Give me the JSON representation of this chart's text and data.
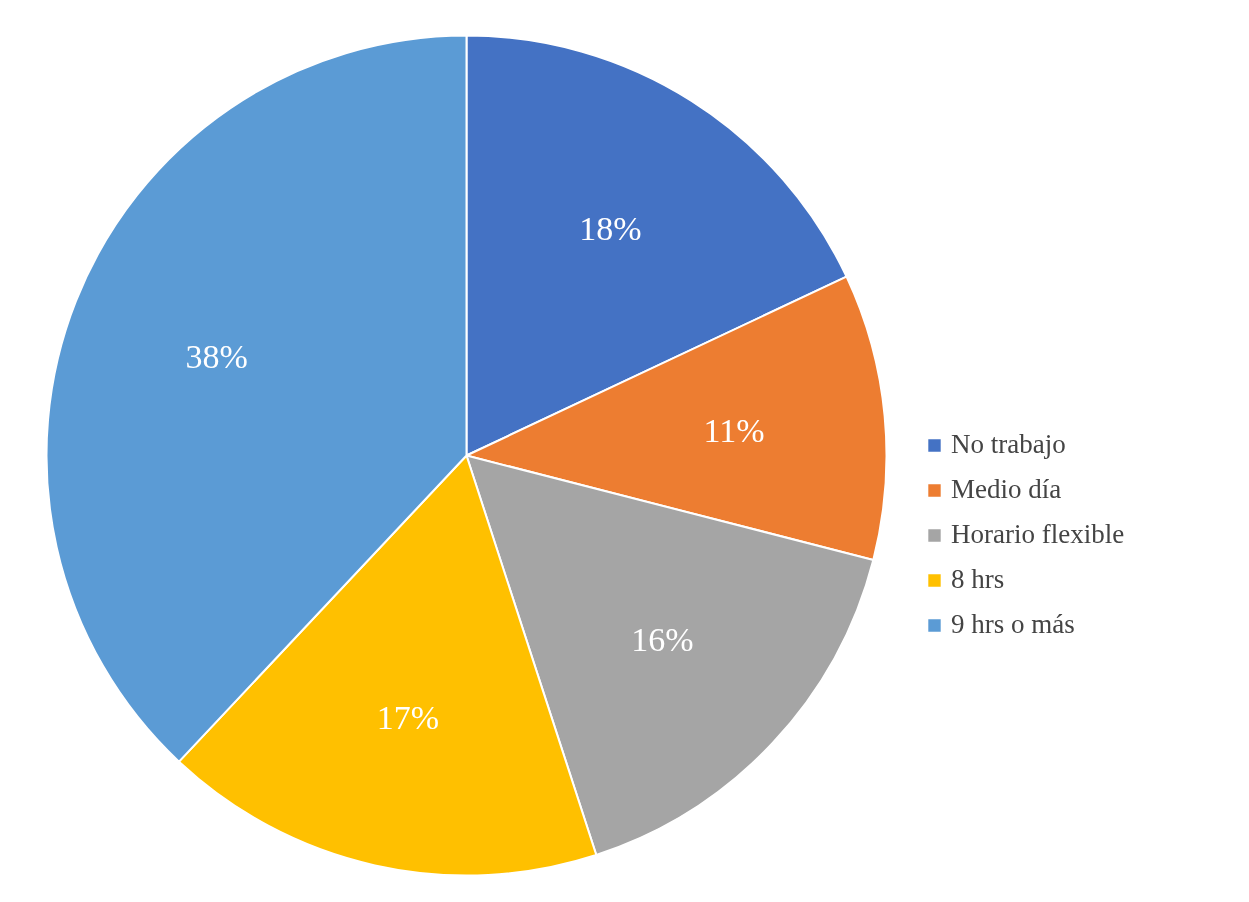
{
  "chart_data": {
    "type": "pie",
    "categories": [
      "No trabajo",
      "Medio día",
      "Horario flexible",
      "8 hrs",
      "9 hrs o más"
    ],
    "values": [
      18,
      11,
      16,
      17,
      38
    ],
    "colors": [
      "#4472c4",
      "#ed7d31",
      "#a5a5a5",
      "#ffc000",
      "#5b9bd5"
    ],
    "value_labels": [
      "18%",
      "11%",
      "16%",
      "17%",
      "38%"
    ],
    "legend": "right"
  }
}
